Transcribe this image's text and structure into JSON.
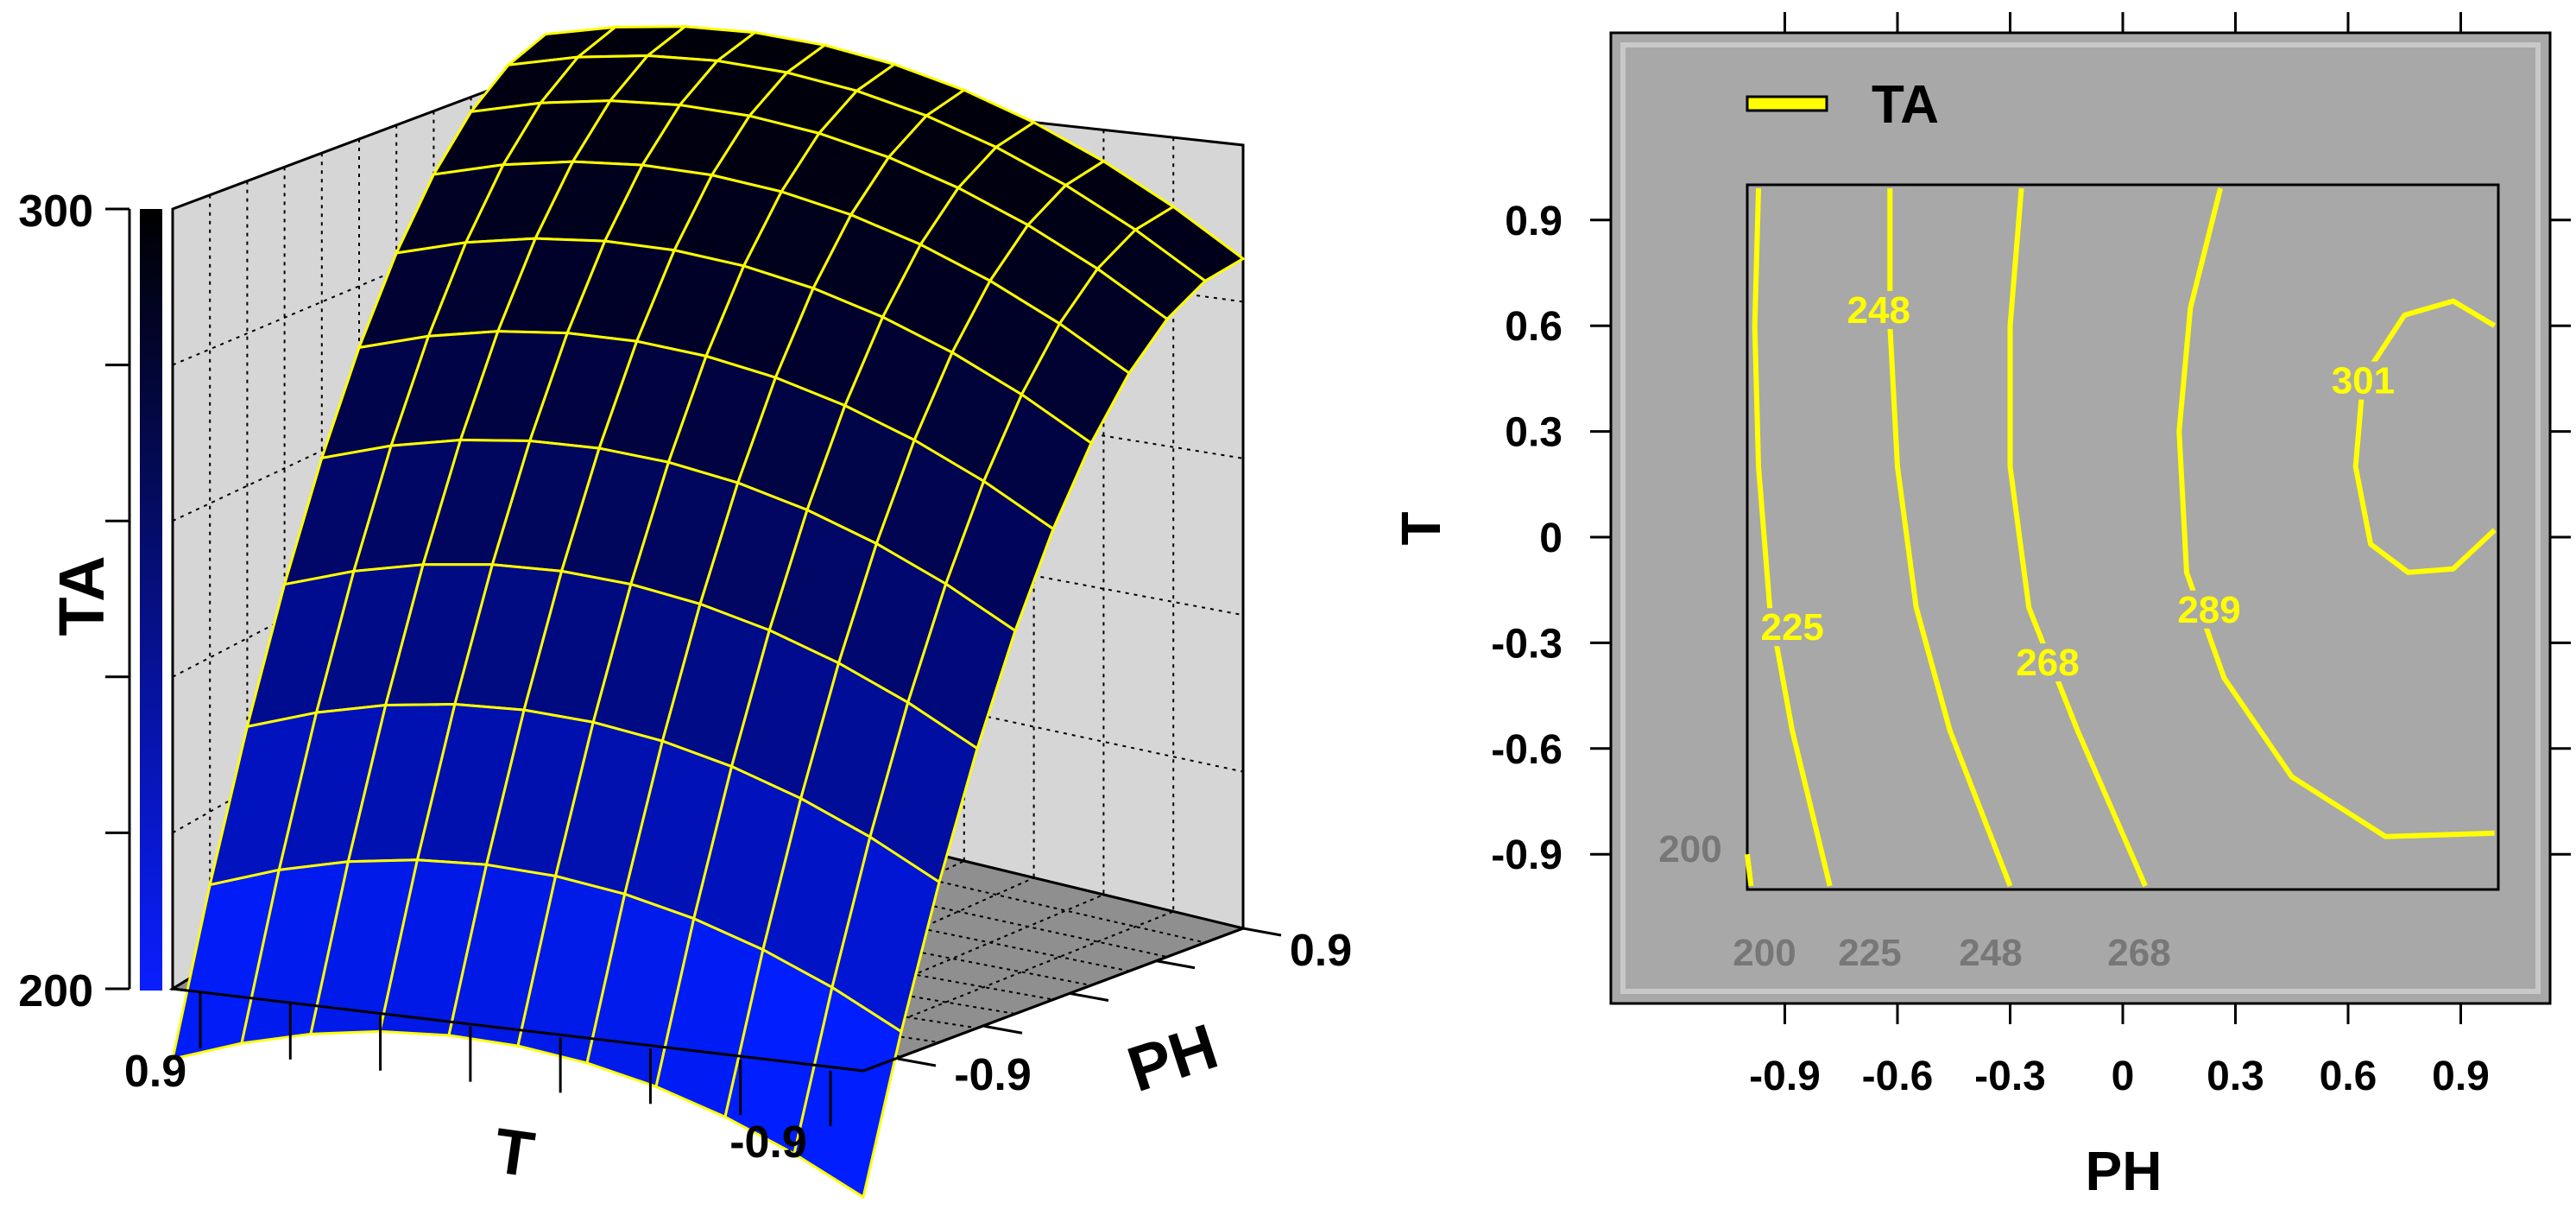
{
  "charts": [
    {
      "type": "surface3d",
      "zlabel": "TA",
      "xlabel": "T",
      "ylabel": "PH",
      "z_ticks": [
        "300",
        "200"
      ],
      "x_ticks": [
        "0.9",
        "-0.9"
      ],
      "y_ticks": [
        "0.9",
        "-0.9"
      ],
      "zlim": [
        200,
        300
      ],
      "colorbar": {
        "low_color": "#0a1eff",
        "high_color": "#000000"
      },
      "mesh_color": "#ffff00",
      "surface_top_value": 301,
      "surface_corner_values": {
        "T_0.9_PH_-0.9": 213,
        "T_-0.9_PH_-0.9": 195,
        "T_0.9_PH_0.9": 292,
        "T_-0.9_PH_0.9": 288
      }
    },
    {
      "type": "contour",
      "xlabel": "PH",
      "ylabel": "T",
      "legend": {
        "label": "TA",
        "placement": "top-left"
      },
      "x_ticks": [
        "-0.9",
        "-0.6",
        "-0.3",
        "0",
        "0.3",
        "0.6",
        "0.9"
      ],
      "y_ticks": [
        "0.9",
        "0.6",
        "0.3",
        "0",
        "-0.3",
        "-0.6",
        "-0.9"
      ],
      "xlim": [
        -1,
        1
      ],
      "ylim": [
        -1,
        1
      ],
      "line_color": "#ffff00",
      "levels": [
        {
          "value": 200,
          "label": "200",
          "inside": false
        },
        {
          "value": 225,
          "label": "225",
          "inside": true
        },
        {
          "value": 248,
          "label": "248",
          "inside": true
        },
        {
          "value": 268,
          "label": "268",
          "inside": true
        },
        {
          "value": 289,
          "label": "289",
          "inside": true
        },
        {
          "value": 301,
          "label": "301",
          "inside": true
        }
      ],
      "outside_labels": [
        "200",
        "225",
        "248",
        "268"
      ]
    }
  ]
}
